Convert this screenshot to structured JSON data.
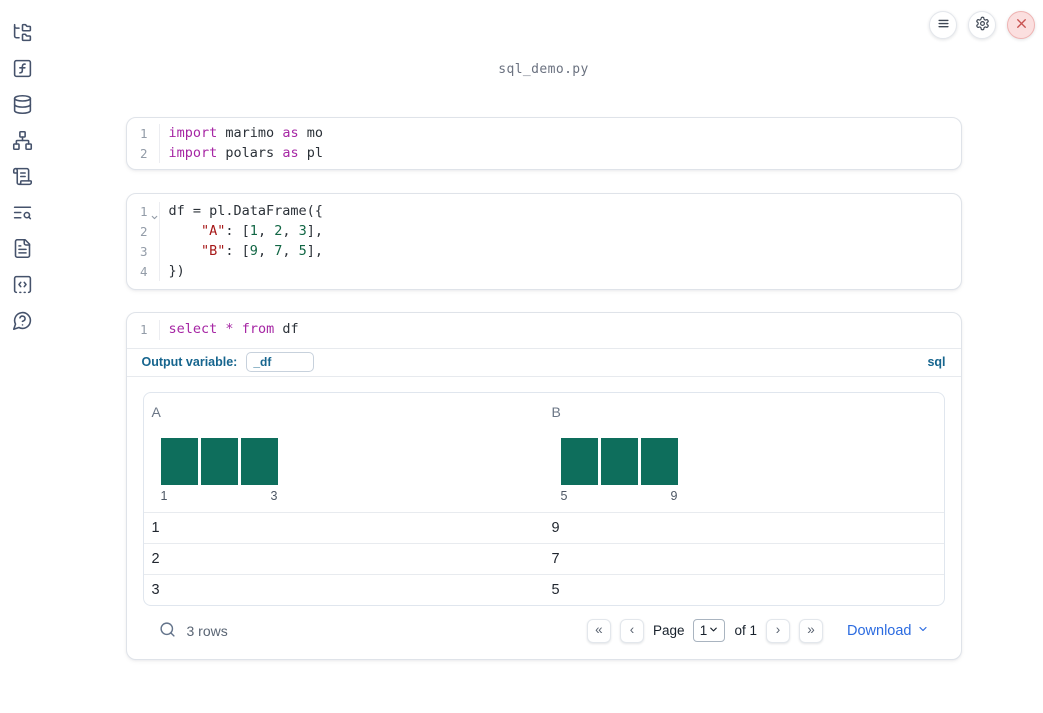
{
  "app": {
    "filename": "sql_demo.py"
  },
  "topbar": {
    "buttons": [
      {
        "name": "menu-button",
        "icon": "menu-icon"
      },
      {
        "name": "settings-button",
        "icon": "gear-icon"
      },
      {
        "name": "shutdown-button",
        "icon": "close-icon"
      }
    ]
  },
  "sidebar": {
    "items": [
      {
        "name": "file-explorer",
        "icon": "folder-tree-icon"
      },
      {
        "name": "scratchpad",
        "icon": "function-square-icon"
      },
      {
        "name": "data-sources",
        "icon": "database-icon"
      },
      {
        "name": "dependency-graph",
        "icon": "network-icon"
      },
      {
        "name": "outline",
        "icon": "scroll-text-icon"
      },
      {
        "name": "logs",
        "icon": "text-search-icon"
      },
      {
        "name": "documentation",
        "icon": "file-text-icon"
      },
      {
        "name": "snippets",
        "icon": "code-snippet-icon"
      },
      {
        "name": "help",
        "icon": "help-circle-icon"
      }
    ]
  },
  "cells": [
    {
      "name": "imports-cell",
      "lines": [
        {
          "num": "1",
          "fold": false,
          "tokens": [
            [
              "import",
              "kw"
            ],
            [
              " marimo ",
              "pl"
            ],
            [
              "as",
              "kw"
            ],
            [
              " mo",
              "pl"
            ]
          ]
        },
        {
          "num": "2",
          "fold": false,
          "tokens": [
            [
              "import",
              "kw"
            ],
            [
              " polars ",
              "pl"
            ],
            [
              "as",
              "kw"
            ],
            [
              " pl",
              "pl"
            ]
          ]
        }
      ]
    },
    {
      "name": "dataframe-cell",
      "lines": [
        {
          "num": "1",
          "fold": true,
          "tokens": [
            [
              "df = pl.DataFrame({",
              "pl"
            ]
          ]
        },
        {
          "num": "2",
          "fold": false,
          "tokens": [
            [
              "    ",
              "pl"
            ],
            [
              "\"A\"",
              "str"
            ],
            [
              ": [",
              "pl"
            ],
            [
              "1",
              "num"
            ],
            [
              ", ",
              "pl"
            ],
            [
              "2",
              "num"
            ],
            [
              ", ",
              "pl"
            ],
            [
              "3",
              "num"
            ],
            [
              "],",
              "pl"
            ]
          ]
        },
        {
          "num": "3",
          "fold": false,
          "tokens": [
            [
              "    ",
              "pl"
            ],
            [
              "\"B\"",
              "str"
            ],
            [
              ": [",
              "pl"
            ],
            [
              "9",
              "num"
            ],
            [
              ", ",
              "pl"
            ],
            [
              "7",
              "num"
            ],
            [
              ", ",
              "pl"
            ],
            [
              "5",
              "num"
            ],
            [
              "],",
              "pl"
            ]
          ]
        },
        {
          "num": "4",
          "fold": false,
          "tokens": [
            [
              "})",
              "pl"
            ]
          ]
        }
      ]
    },
    {
      "name": "sql-cell-editor",
      "lines": [
        {
          "num": "1",
          "fold": false,
          "tokens": [
            [
              "select",
              "kw"
            ],
            [
              " ",
              "pl"
            ],
            [
              "*",
              "kw"
            ],
            [
              " ",
              "pl"
            ],
            [
              "from",
              "kw"
            ],
            [
              " df",
              "pl"
            ]
          ]
        }
      ]
    }
  ],
  "sql_cell": {
    "output_variable_label": "Output variable:",
    "output_variable_value": "_df",
    "language": "sql"
  },
  "table": {
    "columns": [
      {
        "name": "A",
        "hist": {
          "bars": [
            1,
            1,
            1
          ],
          "min_label": "1",
          "max_label": "3"
        }
      },
      {
        "name": "B",
        "hist": {
          "bars": [
            1,
            1,
            1
          ],
          "min_label": "5",
          "max_label": "9"
        }
      }
    ],
    "rows": [
      [
        "1",
        "9"
      ],
      [
        "2",
        "7"
      ],
      [
        "3",
        "5"
      ]
    ],
    "footer": {
      "row_count": "3 rows",
      "page_label": "Page",
      "page_value": "1",
      "of_label": "of 1",
      "download_label": "Download"
    }
  },
  "pager": {
    "buttons": [
      {
        "name": "first-page",
        "glyph": "«"
      },
      {
        "name": "prev-page",
        "glyph": "‹"
      },
      {
        "name": "next-page",
        "glyph": "›"
      },
      {
        "name": "last-page",
        "glyph": "»"
      }
    ]
  },
  "colors": {
    "accent_blue": "#2b6be0",
    "label_blue": "#16658e",
    "histogram_green": "#0e6e5c",
    "keyword_purple": "#a626a4",
    "string_red": "#a61717",
    "number_green": "#116644",
    "danger_red": "#c85352"
  }
}
